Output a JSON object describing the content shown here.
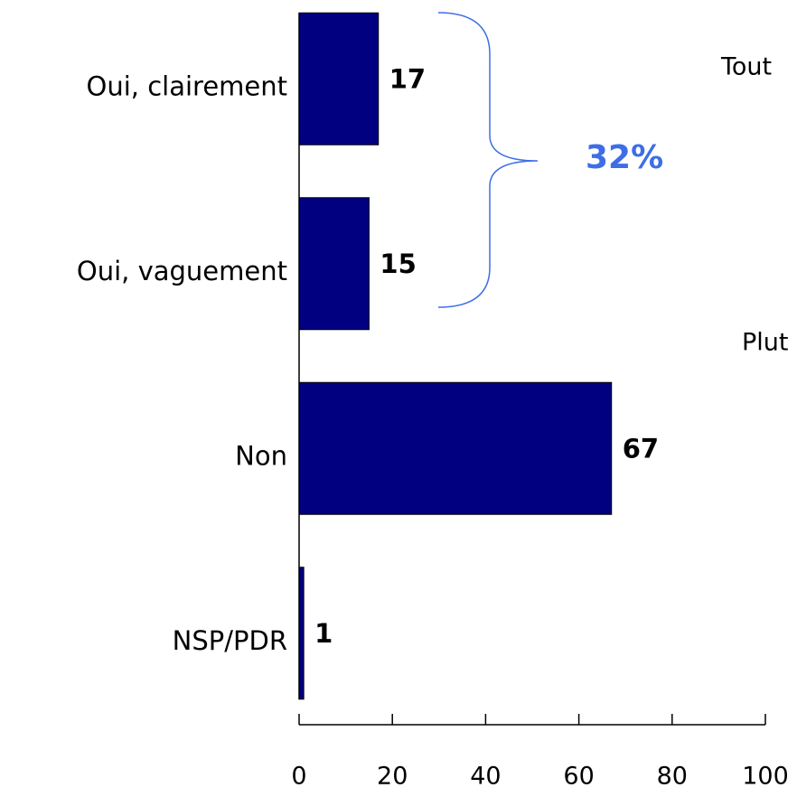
{
  "chart_data": {
    "type": "barh",
    "categories": [
      "Oui, clairement",
      "Oui, vaguement",
      "Non",
      "NSP/PDR"
    ],
    "values": [
      17,
      15,
      67,
      1
    ],
    "color": "#000080",
    "xlim": [
      0,
      100
    ],
    "xticks": [
      0,
      20,
      40,
      60,
      80,
      100
    ],
    "annotations": [
      "32%",
      "Tout",
      "Plut"
    ]
  }
}
